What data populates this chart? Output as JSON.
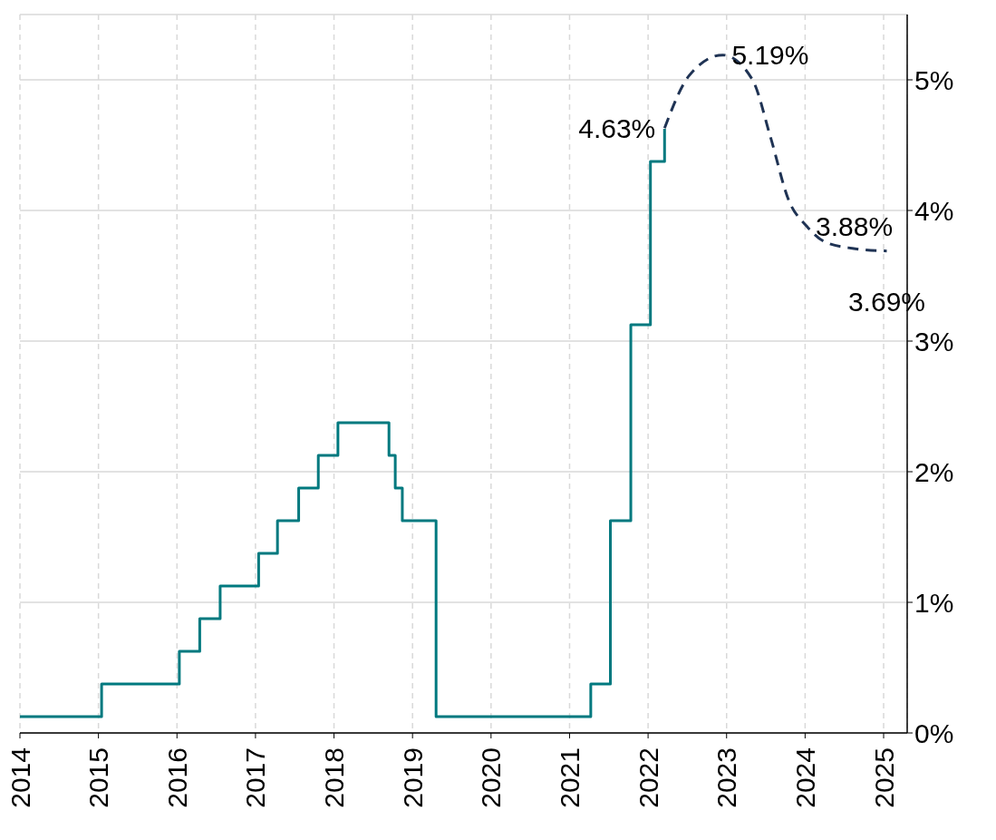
{
  "chart_data": {
    "type": "step",
    "xlim": [
      2014,
      2025.3
    ],
    "xticks": [
      2014,
      2015,
      2016,
      2017,
      2018,
      2019,
      2020,
      2021,
      2022,
      2023,
      2024,
      2025
    ],
    "ylim": [
      0,
      5.5
    ],
    "yticks": [
      {
        "value": 0,
        "label": "0%"
      },
      {
        "value": 1,
        "label": "1%"
      },
      {
        "value": 2,
        "label": "2%"
      },
      {
        "value": 3,
        "label": "3%"
      },
      {
        "value": 4,
        "label": "4%"
      },
      {
        "value": 5,
        "label": "5%"
      }
    ],
    "grid": true,
    "legend": false,
    "series": [
      {
        "color": "#00797f",
        "line_style": "solid",
        "x": [
          2014,
          2015.04,
          2016.03,
          2016.29,
          2016.55,
          2017.04,
          2017.28,
          2017.55,
          2017.8,
          2018.05,
          2018.7,
          2018.78,
          2018.87,
          2019.3,
          2021.27,
          2021.52,
          2021.78,
          2022.03,
          2022.21
        ],
        "values": [
          0.125,
          0.375,
          0.625,
          0.875,
          1.125,
          1.375,
          1.625,
          1.875,
          2.125,
          2.375,
          2.125,
          1.875,
          1.625,
          0.125,
          0.375,
          1.625,
          3.125,
          4.375,
          4.625
        ]
      },
      {
        "type": "line",
        "color": "#1f3354",
        "line_style": "dashed",
        "x": [
          2022.21,
          2022.52,
          2022.95,
          2023.33,
          2023.56,
          2023.79,
          2024.02,
          2024.25,
          2024.6,
          2025.04
        ],
        "values": [
          4.63,
          5.03,
          5.19,
          5.0,
          4.56,
          4.08,
          3.88,
          3.76,
          3.71,
          3.69
        ]
      }
    ],
    "annotations": [
      {
        "text": "4.63%",
        "x": 2022.21,
        "y": 4.63
      },
      {
        "text": "5.19%",
        "x": 2022.95,
        "y": 5.19
      },
      {
        "text": "3.88%",
        "x": 2024.02,
        "y": 3.88
      },
      {
        "text": "3.69%",
        "x": 2025.04,
        "y": 3.69
      }
    ]
  }
}
